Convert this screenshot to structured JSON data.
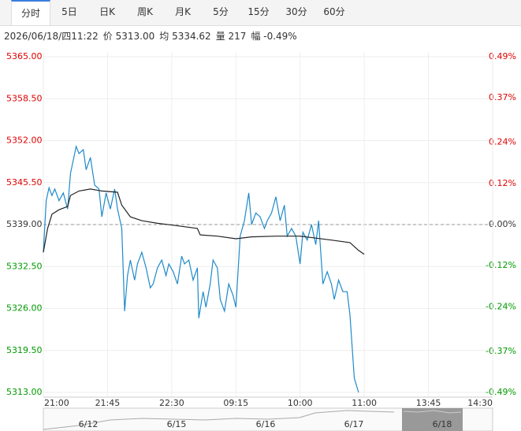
{
  "tabs": [
    "分时",
    "5日",
    "日K",
    "周K",
    "月K",
    "5分",
    "15分",
    "30分",
    "60分"
  ],
  "active_tab": 0,
  "info": [
    "2026/06/18/四11:22",
    "价 5313.00",
    "均 5334.62",
    "量 217",
    "幅 -0.49%"
  ],
  "chart_data": {
    "type": "line",
    "xlim": [
      0,
      315
    ],
    "xticks": [
      {
        "value": 0,
        "label": "21:00"
      },
      {
        "value": 45,
        "label": "21:45"
      },
      {
        "value": 90,
        "label": "22:30"
      },
      {
        "value": 135,
        "label": "09:15"
      },
      {
        "value": 180,
        "label": "10:00"
      },
      {
        "value": 225,
        "label": "11:00"
      },
      {
        "value": 270,
        "label": "13:45"
      },
      {
        "value": 315,
        "label": "14:30"
      }
    ],
    "ylim": [
      5313,
      5365
    ],
    "yticks": [
      {
        "value": 5313,
        "label": "5313.00"
      },
      {
        "value": 5319.5,
        "label": "5319.50"
      },
      {
        "value": 5326,
        "label": "5326.00"
      },
      {
        "value": 5332.5,
        "label": "5332.50"
      },
      {
        "value": 5339,
        "label": "5339.00"
      },
      {
        "value": 5345.5,
        "label": "5345.50"
      },
      {
        "value": 5352,
        "label": "5352.00"
      },
      {
        "value": 5358.5,
        "label": "5358.50"
      },
      {
        "value": 5365,
        "label": "5365.00"
      }
    ],
    "y2lim": [
      -0.49,
      0.49
    ],
    "y2ticks": [
      {
        "value": -0.49,
        "label": "-0.49%"
      },
      {
        "value": -0.37,
        "label": "-0.37%"
      },
      {
        "value": -0.24,
        "label": "-0.24%"
      },
      {
        "value": -0.12,
        "label": "-0.12%"
      },
      {
        "value": 0,
        "label": "0.00%"
      },
      {
        "value": 0.12,
        "label": "0.12%"
      },
      {
        "value": 0.24,
        "label": "0.24%"
      },
      {
        "value": 0.37,
        "label": "0.37%"
      },
      {
        "value": 0.49,
        "label": "0.49%"
      }
    ],
    "reference_line": 5339,
    "grid": true,
    "up_color": "#e00000",
    "down_color": "#009900",
    "series": [
      {
        "color": "#1f8ac9",
        "x": [
          0,
          2,
          4,
          6,
          8,
          11,
          14,
          17,
          19,
          23,
          25,
          28,
          30,
          33,
          36,
          39,
          41,
          44,
          47,
          50,
          52,
          55,
          57,
          59,
          61,
          64,
          66,
          69,
          72,
          75,
          77,
          80,
          83,
          86,
          88,
          91,
          94,
          97,
          99,
          102,
          105,
          108,
          109,
          112,
          114,
          117,
          119,
          122,
          124,
          127,
          130,
          133,
          135,
          138,
          141,
          144,
          146,
          149,
          152,
          155,
          157,
          160,
          163,
          166,
          169,
          171,
          174,
          177,
          180,
          182,
          185,
          188,
          191,
          193,
          196,
          199,
          202,
          204,
          207,
          210,
          213,
          215,
          218,
          221
        ],
        "values": [
          5334.7,
          5342.7,
          5344.7,
          5343.5,
          5344.5,
          5342.7,
          5343.9,
          5341.4,
          5346.9,
          5351.1,
          5350.0,
          5350.6,
          5347.5,
          5349.4,
          5345.1,
          5344.5,
          5340.2,
          5343.9,
          5341.4,
          5344.5,
          5341.4,
          5338.4,
          5325.6,
          5331.1,
          5333.5,
          5330.4,
          5332.9,
          5334.7,
          5332.3,
          5329.2,
          5329.8,
          5332.3,
          5333.5,
          5331.1,
          5332.9,
          5331.7,
          5329.8,
          5334.1,
          5332.9,
          5333.5,
          5330.4,
          5332.3,
          5324.5,
          5328.6,
          5326.2,
          5329.8,
          5333.5,
          5332.3,
          5327.4,
          5325.6,
          5329.8,
          5328.0,
          5326.2,
          5337.2,
          5339.6,
          5343.9,
          5339.0,
          5340.8,
          5340.2,
          5338.4,
          5339.6,
          5340.8,
          5343.3,
          5339.6,
          5342.0,
          5337.2,
          5338.4,
          5337.2,
          5332.9,
          5337.8,
          5336.6,
          5339.0,
          5335.9,
          5339.6,
          5329.8,
          5331.7,
          5329.8,
          5327.4,
          5330.4,
          5328.6,
          5328.6,
          5325.0,
          5315.2,
          5313.0
        ]
      },
      {
        "color": "#222222",
        "x": [
          0,
          3,
          6,
          11,
          17,
          19,
          25,
          33,
          41,
          52,
          55,
          61,
          69,
          80,
          91,
          108,
          110,
          122,
          135,
          146,
          163,
          180,
          191,
          202,
          215,
          221,
          225
        ],
        "values": [
          5334.7,
          5338.4,
          5340.6,
          5341.3,
          5341.8,
          5343.5,
          5344.2,
          5344.5,
          5344.2,
          5344.0,
          5342.0,
          5340.2,
          5339.6,
          5339.2,
          5338.9,
          5338.4,
          5337.4,
          5337.2,
          5336.8,
          5337.1,
          5337.2,
          5337.2,
          5336.9,
          5336.6,
          5336.2,
          5335.0,
          5334.4
        ]
      }
    ]
  },
  "navigator": [
    "6/12",
    "6/15",
    "6/16",
    "6/17",
    "6/18"
  ]
}
